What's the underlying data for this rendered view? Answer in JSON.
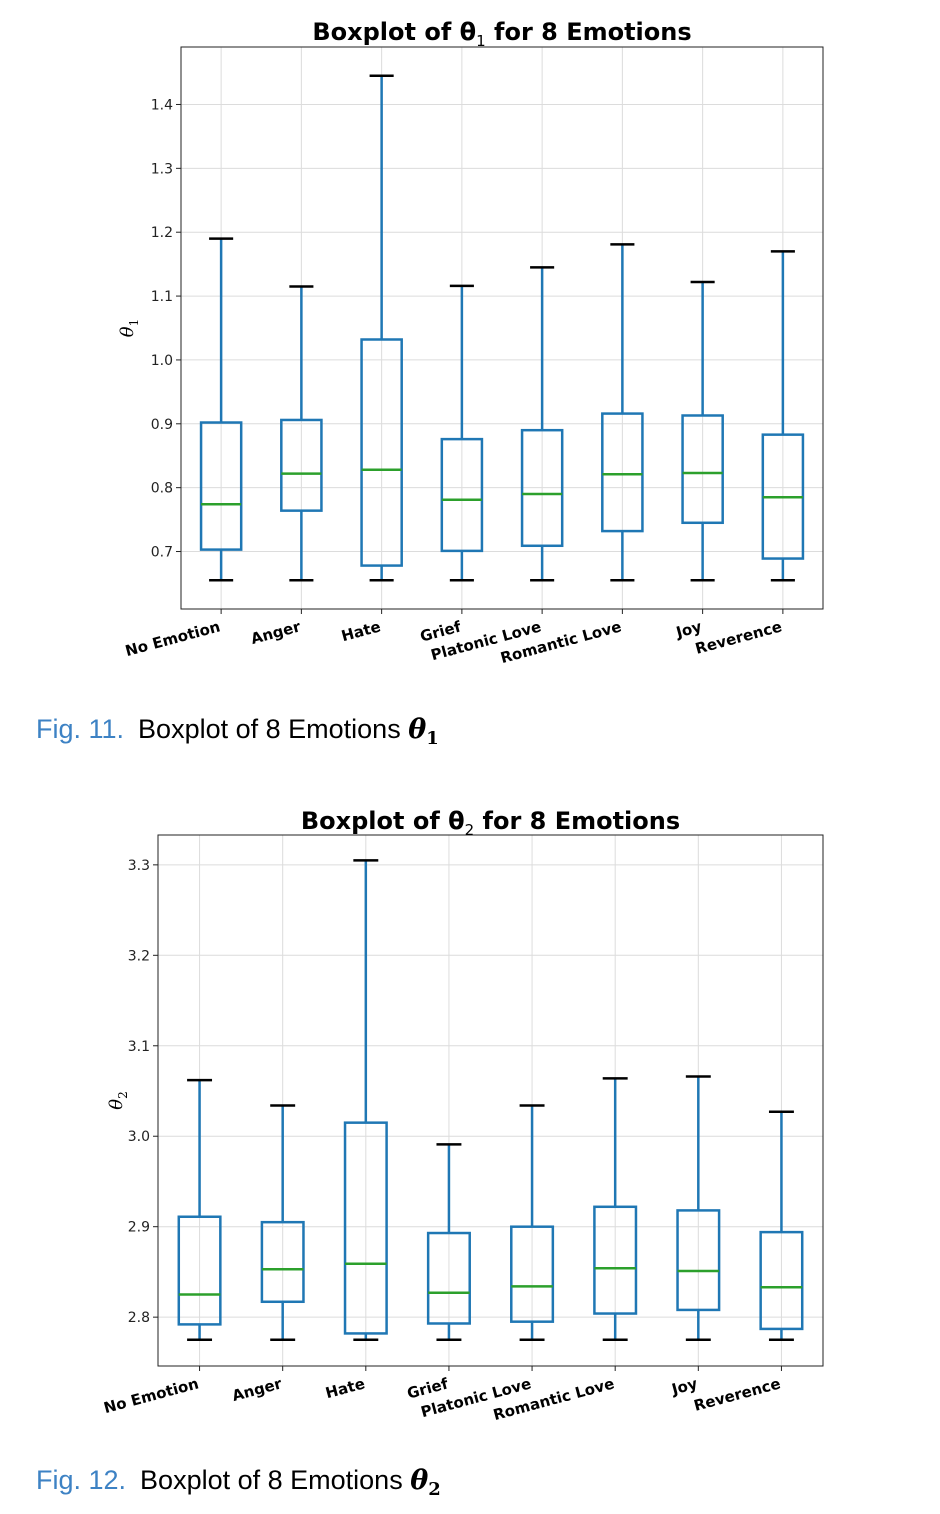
{
  "figures": [
    {
      "caption": {
        "number": "Fig. 11.",
        "text": "Boxplot of 8 Emotions",
        "symbol": "θ",
        "subscript": "1"
      },
      "chart_data": {
        "type": "boxplot",
        "title": "Boxplot of θ₁ for 8 Emotions",
        "title_text": "Boxplot of θ",
        "title_sub": "1",
        "title_rest": " for 8 Emotions",
        "ylabel": "θ",
        "ylabel_sub": "1",
        "ylim": [
          0.61,
          1.49
        ],
        "yticks": [
          0.7,
          0.8,
          0.9,
          1.0,
          1.1,
          1.2,
          1.3,
          1.4
        ],
        "ytick_labels": [
          "0.7",
          "0.8",
          "0.9",
          "1.0",
          "1.1",
          "1.2",
          "1.3",
          "1.4"
        ],
        "grid": true,
        "categories": [
          "No Emotion",
          "Anger",
          "Hate",
          "Grief",
          "Platonic Love",
          "Romantic Love",
          "Joy",
          "Reverence"
        ],
        "boxes": [
          {
            "whisker_low": 0.655,
            "q1": 0.703,
            "median": 0.774,
            "q3": 0.902,
            "whisker_high": 1.19
          },
          {
            "whisker_low": 0.655,
            "q1": 0.764,
            "median": 0.822,
            "q3": 0.906,
            "whisker_high": 1.115
          },
          {
            "whisker_low": 0.655,
            "q1": 0.678,
            "median": 0.828,
            "q3": 1.032,
            "whisker_high": 1.445
          },
          {
            "whisker_low": 0.655,
            "q1": 0.701,
            "median": 0.781,
            "q3": 0.876,
            "whisker_high": 1.116
          },
          {
            "whisker_low": 0.655,
            "q1": 0.709,
            "median": 0.79,
            "q3": 0.89,
            "whisker_high": 1.145
          },
          {
            "whisker_low": 0.655,
            "q1": 0.732,
            "median": 0.821,
            "q3": 0.916,
            "whisker_high": 1.181
          },
          {
            "whisker_low": 0.655,
            "q1": 0.745,
            "median": 0.823,
            "q3": 0.913,
            "whisker_high": 1.122
          },
          {
            "whisker_low": 0.655,
            "q1": 0.689,
            "median": 0.785,
            "q3": 0.883,
            "whisker_high": 1.17
          }
        ],
        "colors": {
          "box": "#1f77b4",
          "median": "#2ca02c",
          "cap": "#000000",
          "grid": "#dcdcdc"
        }
      }
    },
    {
      "caption": {
        "number": "Fig. 12.",
        "text": "Boxplot of 8 Emotions",
        "symbol": "θ",
        "subscript": "2"
      },
      "chart_data": {
        "type": "boxplot",
        "title": "Boxplot of θ₂ for 8 Emotions",
        "title_text": "Boxplot of θ",
        "title_sub": "2",
        "title_rest": " for 8 Emotions",
        "ylabel": "θ",
        "ylabel_sub": "2",
        "ylim": [
          2.746,
          3.333
        ],
        "yticks": [
          2.8,
          2.9,
          3.0,
          3.1,
          3.2,
          3.3
        ],
        "ytick_labels": [
          "2.8",
          "2.9",
          "3.0",
          "3.1",
          "3.2",
          "3.3"
        ],
        "grid": true,
        "categories": [
          "No Emotion",
          "Anger",
          "Hate",
          "Grief",
          "Platonic Love",
          "Romantic Love",
          "Joy",
          "Reverence"
        ],
        "boxes": [
          {
            "whisker_low": 2.775,
            "q1": 2.792,
            "median": 2.825,
            "q3": 2.911,
            "whisker_high": 3.062
          },
          {
            "whisker_low": 2.775,
            "q1": 2.817,
            "median": 2.853,
            "q3": 2.905,
            "whisker_high": 3.034
          },
          {
            "whisker_low": 2.775,
            "q1": 2.782,
            "median": 2.859,
            "q3": 3.015,
            "whisker_high": 3.305
          },
          {
            "whisker_low": 2.775,
            "q1": 2.793,
            "median": 2.827,
            "q3": 2.893,
            "whisker_high": 2.991
          },
          {
            "whisker_low": 2.775,
            "q1": 2.795,
            "median": 2.834,
            "q3": 2.9,
            "whisker_high": 3.034
          },
          {
            "whisker_low": 2.775,
            "q1": 2.804,
            "median": 2.854,
            "q3": 2.922,
            "whisker_high": 3.064
          },
          {
            "whisker_low": 2.775,
            "q1": 2.808,
            "median": 2.851,
            "q3": 2.918,
            "whisker_high": 3.066
          },
          {
            "whisker_low": 2.775,
            "q1": 2.787,
            "median": 2.833,
            "q3": 2.894,
            "whisker_high": 3.027
          }
        ],
        "colors": {
          "box": "#1f77b4",
          "median": "#2ca02c",
          "cap": "#000000",
          "grid": "#dcdcdc"
        }
      }
    }
  ]
}
